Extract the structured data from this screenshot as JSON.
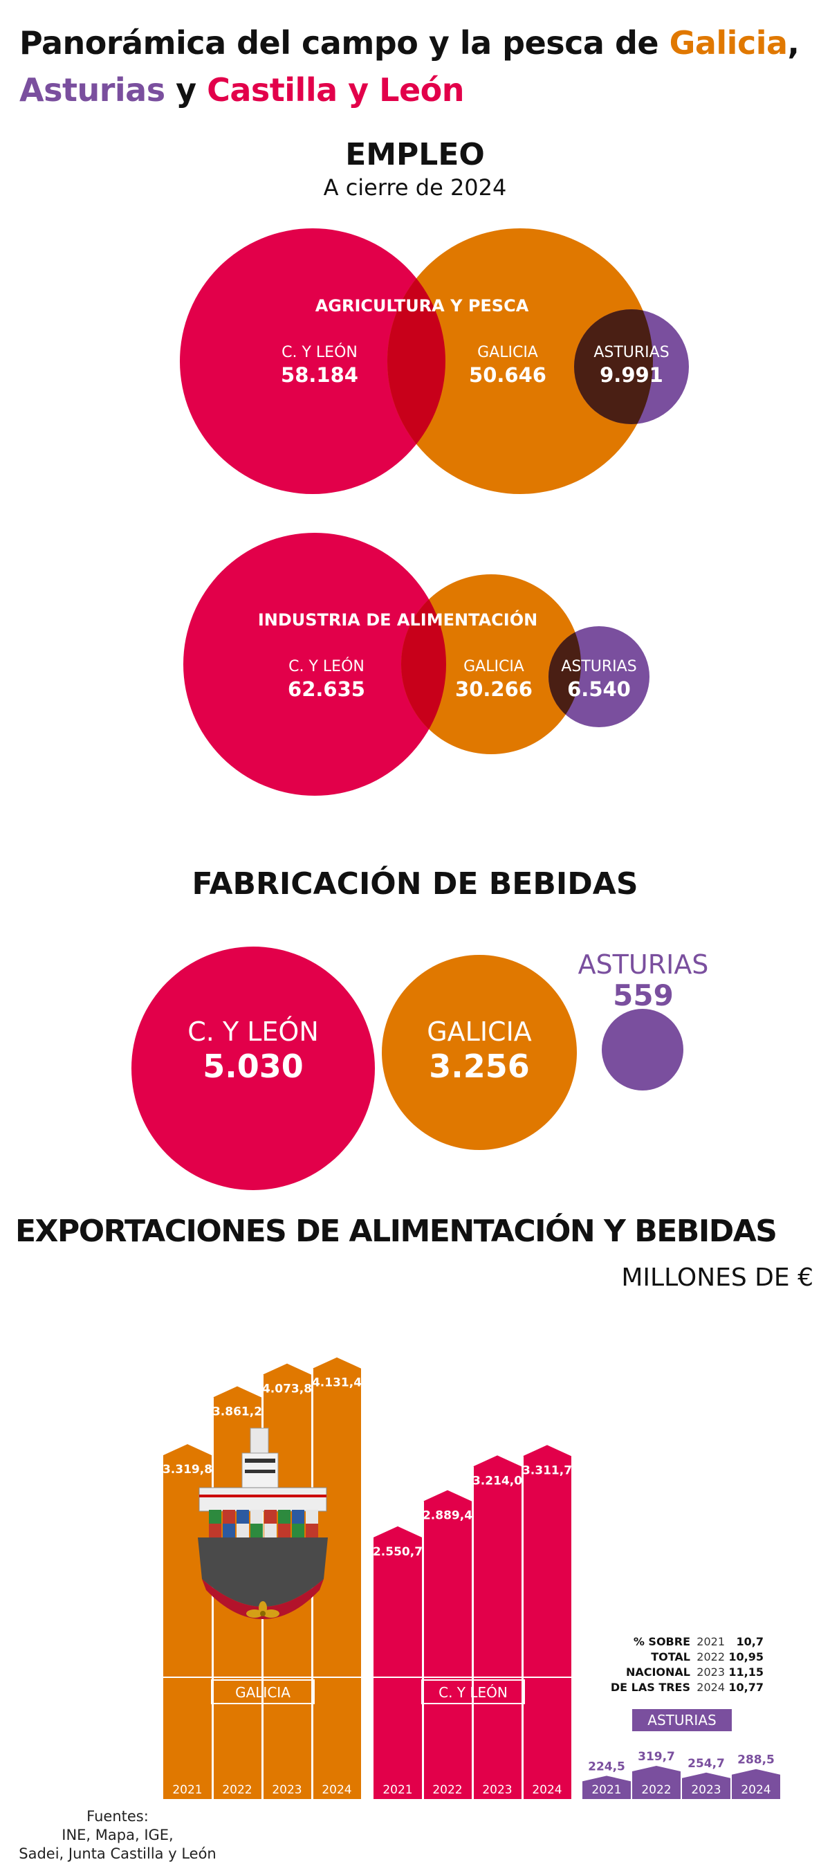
{
  "header": {
    "title_line1": "Panorámica del campo y la pesca de",
    "galicia": "Galicia",
    "comma": ",",
    "asturias": "Asturias",
    "y": "y",
    "cyl": "Castilla y León"
  },
  "empleo": {
    "title": "EMPLEO",
    "subtitle": "A cierre de 2024",
    "agri": {
      "heading": "AGRICULTURA Y PESCA",
      "cyl_label": "C. Y LEÓN",
      "cyl_value": "58.184",
      "gal_label": "GALICIA",
      "gal_value": "50.646",
      "ast_label": "ASTURIAS",
      "ast_value": "9.991"
    },
    "industria": {
      "heading": "INDUSTRIA DE ALIMENTACIÓN",
      "cyl_label": "C. Y LEÓN",
      "cyl_value": "62.635",
      "gal_label": "GALICIA",
      "gal_value": "30.266",
      "ast_label": "ASTURIAS",
      "ast_value": "6.540"
    }
  },
  "bebidas": {
    "title": "FABRICACIÓN DE BEBIDAS",
    "cyl_label": "C. Y LEÓN",
    "cyl_value": "5.030",
    "gal_label": "GALICIA",
    "gal_value": "3.256",
    "ast_label": "ASTURIAS",
    "ast_value": "559"
  },
  "exportaciones": {
    "title": "EXPORTACIONES DE ALIMENTACIÓN Y BEBIDAS",
    "unit": "MILLONES DE €",
    "ship_icon": "cargo-ship-icon",
    "pct": {
      "labels": [
        "% SOBRE",
        "TOTAL",
        "NACIONAL",
        "DE LAS TRES"
      ],
      "years": [
        "2021",
        "2022",
        "2023",
        "2024"
      ],
      "values": [
        "10,7",
        "10,95",
        "11,15",
        "10,77"
      ]
    }
  },
  "sources": {
    "lines": [
      "Fuentes:",
      "INE, Mapa, IGE,",
      "Sadei, Junta Castilla y León"
    ]
  },
  "colors": {
    "galicia": "#E07800",
    "cyl": "#E2004A",
    "asturias": "#7A4F9E",
    "overlap_cyl_gal": "#C8001A",
    "overlap_gal_ast": "#4A1F14"
  },
  "chart_data": [
    {
      "type": "venn",
      "title": "AGRICULTURA Y PESCA",
      "categories": [
        "C. Y LEÓN",
        "GALICIA",
        "ASTURIAS"
      ],
      "values": [
        58184,
        50646,
        9991
      ]
    },
    {
      "type": "venn",
      "title": "INDUSTRIA DE ALIMENTACIÓN",
      "categories": [
        "C. Y LEÓN",
        "GALICIA",
        "ASTURIAS"
      ],
      "values": [
        62635,
        30266,
        6540
      ]
    },
    {
      "type": "bubble",
      "title": "FABRICACIÓN DE BEBIDAS",
      "categories": [
        "C. Y LEÓN",
        "GALICIA",
        "ASTURIAS"
      ],
      "values": [
        5030,
        3256,
        559
      ]
    },
    {
      "type": "bar",
      "title": "EXPORTACIONES DE ALIMENTACIÓN Y BEBIDAS",
      "ylabel": "MILLONES DE €",
      "categories": [
        "2021",
        "2022",
        "2023",
        "2024"
      ],
      "series": [
        {
          "name": "GALICIA",
          "values": [
            3319.8,
            3861.2,
            4073.8,
            4131.4
          ],
          "labels": [
            "3.319,8",
            "3.861,2",
            "4.073,8",
            "4.131,4"
          ]
        },
        {
          "name": "C. Y LEÓN",
          "values": [
            2550.7,
            2889.4,
            3214.0,
            3311.7
          ],
          "labels": [
            "2.550,7",
            "2.889,4",
            "3.214,0",
            "3.311,7"
          ]
        },
        {
          "name": "ASTURIAS",
          "values": [
            224.5,
            319.7,
            254.7,
            288.5
          ],
          "labels": [
            "224,5",
            "319,7",
            "254,7",
            "288,5"
          ]
        }
      ]
    }
  ]
}
